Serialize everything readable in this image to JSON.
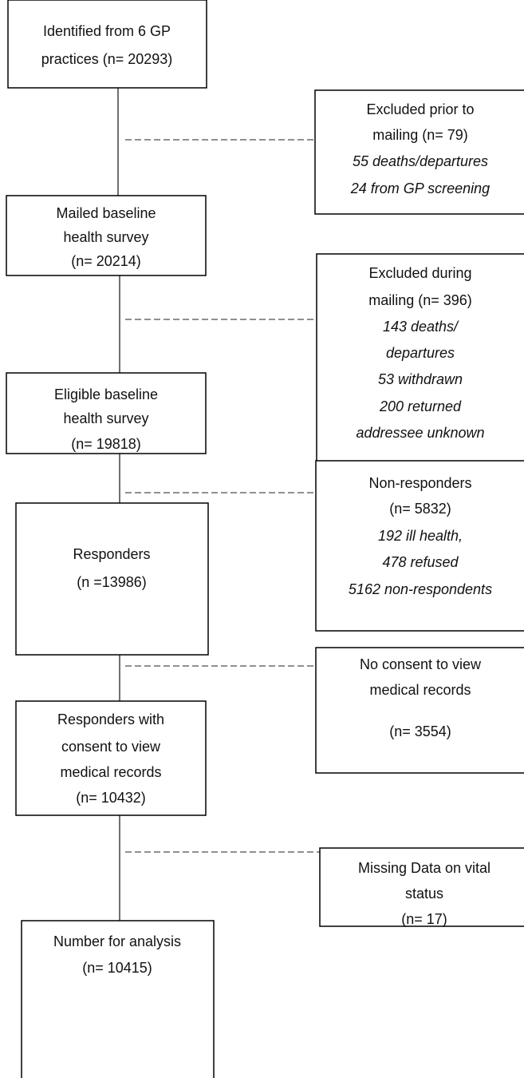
{
  "flow": {
    "steps": [
      {
        "lines": [
          "Identified from 6 GP",
          "practices (n= 20293)"
        ]
      },
      {
        "lines": [
          "Mailed baseline",
          "health survey",
          "(n= 20214)"
        ]
      },
      {
        "lines": [
          "Eligible baseline",
          "health survey",
          "(n= 19818)"
        ]
      },
      {
        "lines": [
          "Responders",
          "(n =13986)"
        ]
      },
      {
        "lines": [
          "Responders with",
          "consent to view",
          "medical records",
          "(n= 10432)"
        ]
      },
      {
        "lines": [
          "Number for analysis",
          "(n= 10415)"
        ]
      }
    ],
    "exclusions": [
      {
        "lines": [
          "Excluded prior to",
          "mailing (n= 79)"
        ],
        "notes": [
          "55 deaths/departures",
          "24 from GP screening"
        ]
      },
      {
        "lines": [
          "Excluded during",
          "mailing (n= 396)"
        ],
        "notes": [
          "143 deaths/",
          "departures",
          "53 withdrawn",
          "200 returned",
          "addressee unknown"
        ]
      },
      {
        "lines": [
          "Non-responders",
          "(n= 5832)"
        ],
        "notes": [
          "192 ill health,",
          "478 refused",
          "5162 non-respondents"
        ]
      },
      {
        "lines": [
          "No consent to view",
          "medical records",
          "(n= 3554)"
        ],
        "notes": []
      },
      {
        "lines": [
          "Missing Data on vital",
          "status",
          "(n= 17)"
        ],
        "notes": []
      }
    ]
  }
}
